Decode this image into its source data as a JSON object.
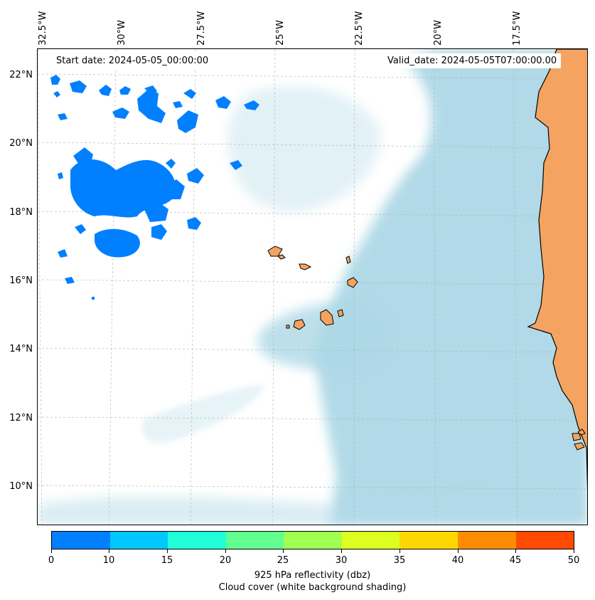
{
  "map": {
    "start_date": "Start date: 2024-05-05_00:00:00",
    "valid_date": "Valid_date: 2024-05-05T07:00:00.00",
    "lon_labels": [
      "32.5°W",
      "30°W",
      "27.5°W",
      "25°W",
      "22.5°W",
      "20°W",
      "17.5°W"
    ],
    "lat_labels": [
      "22°N",
      "20°N",
      "18°N",
      "16°N",
      "14°N",
      "12°N",
      "10°N"
    ],
    "colors": {
      "land": "#f4a460",
      "coastline": "#000000",
      "cloud_cover": "#add8e6",
      "reflectivity_0_10": "#0080ff",
      "gridline": "#b0b0b0"
    },
    "features": {
      "land_region": "West African coast (Mauritania, Senegal, Guinea-Bissau)",
      "islands": "Cape Verde islands"
    }
  },
  "colorbar": {
    "ticks": [
      "0",
      "10",
      "15",
      "20",
      "25",
      "30",
      "35",
      "40",
      "45",
      "50"
    ],
    "colors": [
      "#0080ff",
      "#00c8ff",
      "#20ffd8",
      "#60ff90",
      "#a0ff50",
      "#dcff20",
      "#ffd700",
      "#ff8c00",
      "#ff4a00"
    ],
    "label_line1": "925 hPa reflectivity (dbz)",
    "label_line2": "Cloud cover (white background shading)"
  }
}
